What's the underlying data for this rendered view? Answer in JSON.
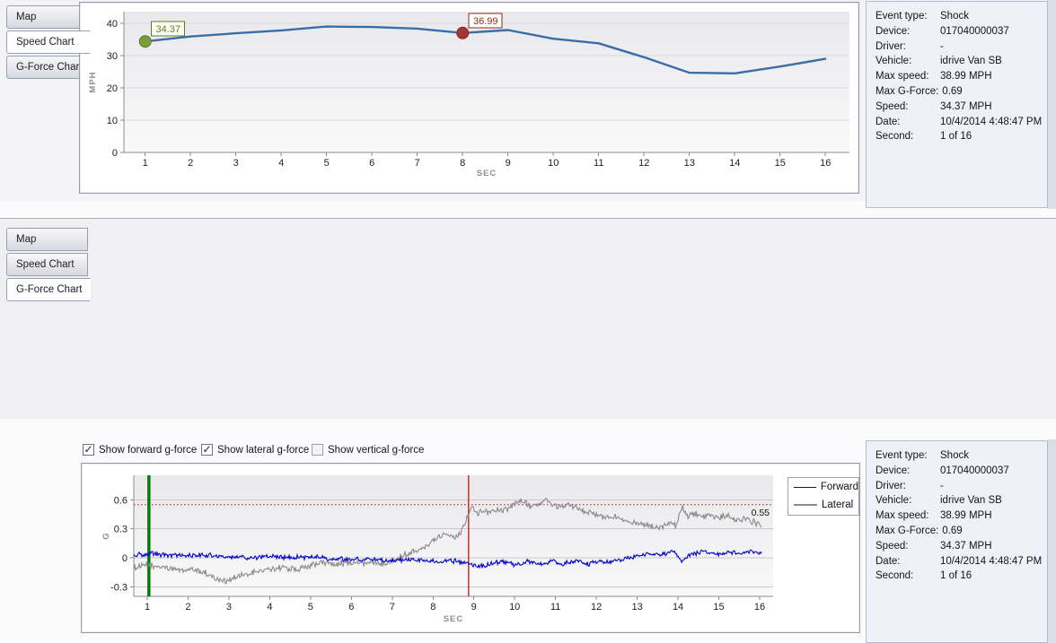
{
  "speed_panel": {
    "tabs": [
      {
        "label": "Map",
        "selected": false
      },
      {
        "label": "Speed Chart",
        "selected": true
      },
      {
        "label": "G-Force Chart",
        "selected": false
      }
    ]
  },
  "gforce_panel": {
    "tabs": [
      {
        "label": "Map",
        "selected": false
      },
      {
        "label": "Speed Chart",
        "selected": false
      },
      {
        "label": "G-Force Chart",
        "selected": true
      }
    ],
    "checkboxes": [
      {
        "label": "Show forward g-force",
        "checked": true
      },
      {
        "label": "Show lateral g-force",
        "checked": true
      },
      {
        "label": "Show vertical g-force",
        "checked": false
      }
    ],
    "legend": [
      {
        "label": "Forward",
        "color": "#0000cc",
        "thickness": 1.5
      },
      {
        "label": "Lateral",
        "color": "#8a8a8a",
        "thickness": 2
      }
    ]
  },
  "event_details": {
    "rows": [
      {
        "label": "Event type:",
        "value": "Shock"
      },
      {
        "label": "Device:",
        "value": "017040000037"
      },
      {
        "label": "Driver:",
        "value": "-"
      },
      {
        "label": "Vehicle:",
        "value": "idrive Van SB"
      },
      {
        "label": "Max speed:",
        "value": "38.99 MPH"
      },
      {
        "label": "Max G-Force:",
        "value": "0.69"
      },
      {
        "label": "Speed:",
        "value": "34.37 MPH"
      },
      {
        "label": "Date:",
        "value": "10/4/2014 4:48:47 PM"
      },
      {
        "label": "Second:",
        "value": "1 of 16"
      }
    ]
  },
  "chart_data": [
    {
      "id": "speed",
      "type": "line",
      "title": "Speed Chart",
      "xlabel": "SEC",
      "ylabel": "MPH",
      "x": [
        1,
        2,
        3,
        4,
        5,
        6,
        7,
        8,
        9,
        10,
        11,
        12,
        13,
        14,
        15,
        16
      ],
      "values": [
        34.37,
        35.9,
        36.9,
        37.8,
        39.0,
        38.85,
        38.35,
        36.99,
        37.9,
        35.2,
        33.8,
        29.5,
        24.7,
        24.5,
        26.6,
        29.0
      ],
      "xticks": [
        1,
        2,
        3,
        4,
        5,
        6,
        7,
        8,
        9,
        10,
        11,
        12,
        13,
        14,
        15,
        16
      ],
      "yticks": [
        0,
        10,
        20,
        30,
        40
      ],
      "xlim": [
        0.53,
        16.53
      ],
      "ylim": [
        0,
        43.6
      ],
      "grid": true,
      "line_color": "#3a6da6",
      "markers": [
        {
          "x": 1,
          "value": 34.37,
          "label": "34.37",
          "fill": "#7b9b3f",
          "stroke": "#5c7d22",
          "text_color": "#5c7d22"
        },
        {
          "x": 8,
          "value": 36.99,
          "label": "36.99",
          "fill": "#a33537",
          "stroke": "#8b2a2a",
          "text_color": "#8b2a2a"
        }
      ]
    },
    {
      "id": "gforce",
      "type": "line",
      "title": "G-Force Chart",
      "xlabel": "SEC",
      "ylabel": "G",
      "xticks": [
        1,
        2,
        3,
        4,
        5,
        6,
        7,
        8,
        9,
        10,
        11,
        12,
        13,
        14,
        15,
        16
      ],
      "yticks": [
        -0.3,
        0,
        0.3,
        0.6
      ],
      "xlim": [
        0.67,
        16.33
      ],
      "ylim": [
        -0.399,
        0.854
      ],
      "grid": true,
      "threshold": {
        "value": 0.55,
        "label": "0.55",
        "color": "#dd0000"
      },
      "vlines": [
        {
          "name": "selection-start",
          "x": 1.04,
          "color": "#0a7a0a",
          "width": 3.5
        },
        {
          "name": "cursor",
          "x": 8.87,
          "color": "#cc2222",
          "width": 1.4
        }
      ],
      "series": [
        {
          "name": "Forward",
          "color": "#0000cc",
          "noise": 0.02,
          "anchors": [
            [
              0.67,
              0.03
            ],
            [
              1.2,
              0.04
            ],
            [
              1.8,
              0.02
            ],
            [
              2.4,
              0.03
            ],
            [
              3.0,
              0.01
            ],
            [
              3.5,
              0.0
            ],
            [
              4.0,
              0.02
            ],
            [
              4.5,
              0.0
            ],
            [
              5.0,
              0.01
            ],
            [
              5.5,
              -0.01
            ],
            [
              6.0,
              -0.02
            ],
            [
              6.5,
              -0.01
            ],
            [
              7.0,
              -0.03
            ],
            [
              7.5,
              -0.02
            ],
            [
              8.0,
              -0.04
            ],
            [
              8.4,
              -0.03
            ],
            [
              8.8,
              -0.05
            ],
            [
              9.1,
              -0.09
            ],
            [
              9.4,
              -0.06
            ],
            [
              9.7,
              -0.04
            ],
            [
              10.0,
              -0.07
            ],
            [
              10.3,
              -0.04
            ],
            [
              10.6,
              -0.07
            ],
            [
              10.9,
              -0.04
            ],
            [
              11.2,
              -0.06
            ],
            [
              11.5,
              -0.03
            ],
            [
              11.8,
              -0.06
            ],
            [
              12.1,
              -0.03
            ],
            [
              12.4,
              -0.05
            ],
            [
              12.7,
              -0.01
            ],
            [
              13.0,
              0.02
            ],
            [
              13.3,
              0.05
            ],
            [
              13.6,
              0.03
            ],
            [
              13.9,
              0.07
            ],
            [
              14.1,
              -0.04
            ],
            [
              14.3,
              0.04
            ],
            [
              14.6,
              0.06
            ],
            [
              14.9,
              0.04
            ],
            [
              15.2,
              0.06
            ],
            [
              15.5,
              0.04
            ],
            [
              15.8,
              0.07
            ],
            [
              16.05,
              0.05
            ]
          ]
        },
        {
          "name": "Lateral",
          "color": "#8a8a8a",
          "noise": 0.026,
          "anchors": [
            [
              0.67,
              -0.1
            ],
            [
              1.0,
              -0.08
            ],
            [
              1.4,
              -0.1
            ],
            [
              1.8,
              -0.13
            ],
            [
              2.1,
              -0.12
            ],
            [
              2.4,
              -0.15
            ],
            [
              2.7,
              -0.22
            ],
            [
              2.9,
              -0.24
            ],
            [
              3.1,
              -0.21
            ],
            [
              3.4,
              -0.18
            ],
            [
              3.7,
              -0.14
            ],
            [
              4.0,
              -0.12
            ],
            [
              4.3,
              -0.1
            ],
            [
              4.7,
              -0.12
            ],
            [
              5.0,
              -0.08
            ],
            [
              5.3,
              -0.05
            ],
            [
              5.6,
              -0.06
            ],
            [
              6.0,
              -0.05
            ],
            [
              6.4,
              -0.06
            ],
            [
              6.8,
              -0.05
            ],
            [
              7.1,
              -0.01
            ],
            [
              7.4,
              0.05
            ],
            [
              7.7,
              0.1
            ],
            [
              8.0,
              0.17
            ],
            [
              8.2,
              0.23
            ],
            [
              8.4,
              0.26
            ],
            [
              8.55,
              0.21
            ],
            [
              8.7,
              0.28
            ],
            [
              8.85,
              0.44
            ],
            [
              8.95,
              0.54
            ],
            [
              9.05,
              0.46
            ],
            [
              9.2,
              0.49
            ],
            [
              9.4,
              0.47
            ],
            [
              9.6,
              0.5
            ],
            [
              9.8,
              0.49
            ],
            [
              10.0,
              0.55
            ],
            [
              10.15,
              0.6
            ],
            [
              10.3,
              0.56
            ],
            [
              10.45,
              0.52
            ],
            [
              10.6,
              0.55
            ],
            [
              10.75,
              0.6
            ],
            [
              10.9,
              0.56
            ],
            [
              11.05,
              0.52
            ],
            [
              11.2,
              0.55
            ],
            [
              11.4,
              0.53
            ],
            [
              11.6,
              0.51
            ],
            [
              11.8,
              0.47
            ],
            [
              12.0,
              0.45
            ],
            [
              12.2,
              0.41
            ],
            [
              12.45,
              0.43
            ],
            [
              12.7,
              0.4
            ],
            [
              12.9,
              0.37
            ],
            [
              13.1,
              0.34
            ],
            [
              13.35,
              0.33
            ],
            [
              13.6,
              0.31
            ],
            [
              13.8,
              0.36
            ],
            [
              13.95,
              0.33
            ],
            [
              14.1,
              0.52
            ],
            [
              14.25,
              0.43
            ],
            [
              14.4,
              0.46
            ],
            [
              14.6,
              0.41
            ],
            [
              14.8,
              0.43
            ],
            [
              15.0,
              0.41
            ],
            [
              15.2,
              0.44
            ],
            [
              15.4,
              0.39
            ],
            [
              15.6,
              0.41
            ],
            [
              15.8,
              0.38
            ],
            [
              16.05,
              0.33
            ]
          ]
        }
      ],
      "x_end": 16.05
    }
  ]
}
